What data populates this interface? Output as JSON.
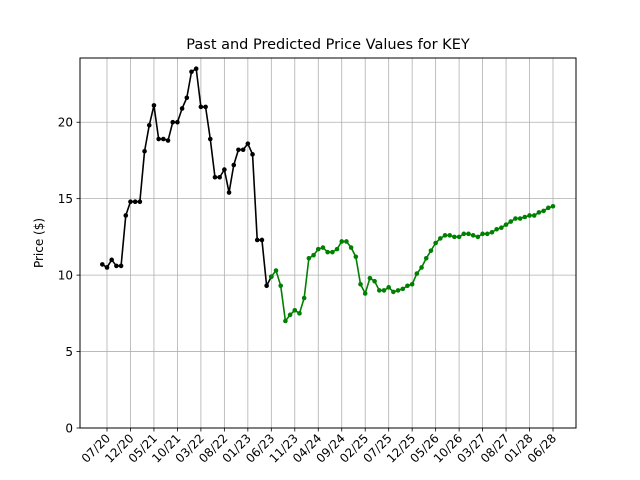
{
  "chart_data": {
    "type": "line",
    "title": "Past and Predicted Price Values for KEY",
    "xlabel": "",
    "ylabel": "Price ($)",
    "ylim": [
      0,
      24.2
    ],
    "yticks": [
      0,
      5,
      10,
      15,
      20
    ],
    "xticks": [
      "07/20",
      "12/20",
      "05/21",
      "10/21",
      "03/22",
      "08/22",
      "01/23",
      "06/23",
      "11/23",
      "04/24",
      "09/24",
      "02/25",
      "07/25",
      "12/25",
      "05/26",
      "10/26",
      "03/27",
      "08/27",
      "01/28",
      "06/28"
    ],
    "grid": true,
    "series": [
      {
        "color": "#000000",
        "x": [
          "2020-06",
          "2020-07",
          "2020-08",
          "2020-09",
          "2020-10",
          "2020-11",
          "2020-12",
          "2021-01",
          "2021-02",
          "2021-03",
          "2021-04",
          "2021-05",
          "2021-06",
          "2021-07",
          "2021-08",
          "2021-09",
          "2021-10",
          "2021-11",
          "2021-12",
          "2022-01",
          "2022-02",
          "2022-03",
          "2022-04",
          "2022-05",
          "2022-06",
          "2022-07",
          "2022-08",
          "2022-09",
          "2022-10",
          "2022-11",
          "2022-12",
          "2023-01",
          "2023-02",
          "2023-03",
          "2023-04",
          "2023-05",
          "2023-06"
        ],
        "values": [
          10.7,
          10.5,
          11.0,
          10.6,
          10.6,
          13.9,
          14.8,
          14.8,
          14.8,
          18.1,
          19.8,
          21.1,
          18.9,
          18.9,
          18.8,
          20.0,
          20.0,
          20.9,
          21.6,
          23.3,
          23.5,
          21.0,
          21.0,
          18.9,
          16.4,
          16.4,
          16.9,
          15.4,
          17.2,
          18.2,
          18.2,
          18.6,
          17.9,
          12.3,
          12.3,
          9.3,
          9.9
        ]
      },
      {
        "color": "#008000",
        "x": [
          "2023-06",
          "2023-07",
          "2023-08",
          "2023-09",
          "2023-10",
          "2023-11",
          "2023-12",
          "2024-01",
          "2024-02",
          "2024-03",
          "2024-04",
          "2024-05",
          "2024-06",
          "2024-07",
          "2024-08",
          "2024-09",
          "2024-10",
          "2024-11",
          "2024-12",
          "2025-01",
          "2025-02",
          "2025-03",
          "2025-04",
          "2025-05",
          "2025-06",
          "2025-07",
          "2025-08",
          "2025-09",
          "2025-10",
          "2025-11",
          "2025-12",
          "2026-01",
          "2026-02",
          "2026-03",
          "2026-04",
          "2026-05",
          "2026-06",
          "2026-07",
          "2026-08",
          "2026-09",
          "2026-10",
          "2026-11",
          "2026-12",
          "2027-01",
          "2027-02",
          "2027-03",
          "2027-04",
          "2027-05",
          "2027-06",
          "2027-07",
          "2027-08",
          "2027-09",
          "2027-10",
          "2027-11",
          "2027-12",
          "2028-01",
          "2028-02",
          "2028-03",
          "2028-04",
          "2028-05",
          "2028-06"
        ],
        "values": [
          9.9,
          10.3,
          9.3,
          7.0,
          7.4,
          7.7,
          7.5,
          8.5,
          11.1,
          11.3,
          11.7,
          11.8,
          11.5,
          11.5,
          11.7,
          12.2,
          12.2,
          11.8,
          11.2,
          9.4,
          8.8,
          9.8,
          9.6,
          9.0,
          9.0,
          9.2,
          8.9,
          9.0,
          9.1,
          9.3,
          9.4,
          10.1,
          10.5,
          11.1,
          11.6,
          12.1,
          12.4,
          12.6,
          12.6,
          12.5,
          12.5,
          12.7,
          12.7,
          12.6,
          12.5,
          12.7,
          12.7,
          12.8,
          13.0,
          13.1,
          13.3,
          13.5,
          13.7,
          13.7,
          13.8,
          13.9,
          13.9,
          14.1,
          14.2,
          14.4,
          14.5
        ]
      }
    ]
  }
}
